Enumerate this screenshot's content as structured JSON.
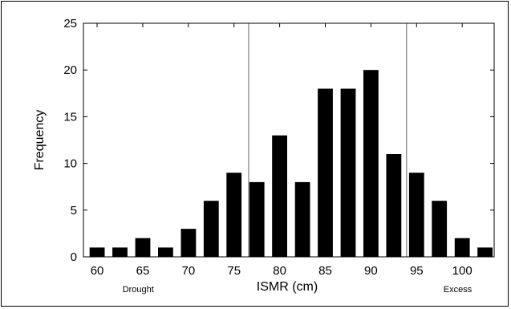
{
  "chart_data": {
    "type": "bar",
    "title": "",
    "xlabel": "ISMR (cm)",
    "ylabel": "Frequency",
    "xlim": [
      58.5,
      103.5
    ],
    "ylim": [
      0,
      25
    ],
    "x_ticks": [
      60,
      65,
      70,
      75,
      80,
      85,
      90,
      95,
      100
    ],
    "y_ticks": [
      0,
      5,
      10,
      15,
      20,
      25
    ],
    "bin_centers": [
      60,
      62.5,
      65,
      67.5,
      70,
      72.5,
      75,
      77.5,
      80,
      82.5,
      85,
      87.5,
      90,
      92.5,
      95,
      97.5,
      100,
      102.5
    ],
    "values": [
      1,
      1,
      2,
      1,
      3,
      6,
      9,
      8,
      13,
      8,
      18,
      18,
      20,
      11,
      9,
      6,
      2,
      1
    ],
    "bar_color": "#000000",
    "threshold_lines": [
      76.6,
      93.9
    ],
    "threshold_color": "#888888",
    "annotations": [
      {
        "text": "Drought",
        "x": 64.5
      },
      {
        "text": "Excess",
        "x": 99.5
      }
    ],
    "grid": false,
    "legend": "none"
  }
}
